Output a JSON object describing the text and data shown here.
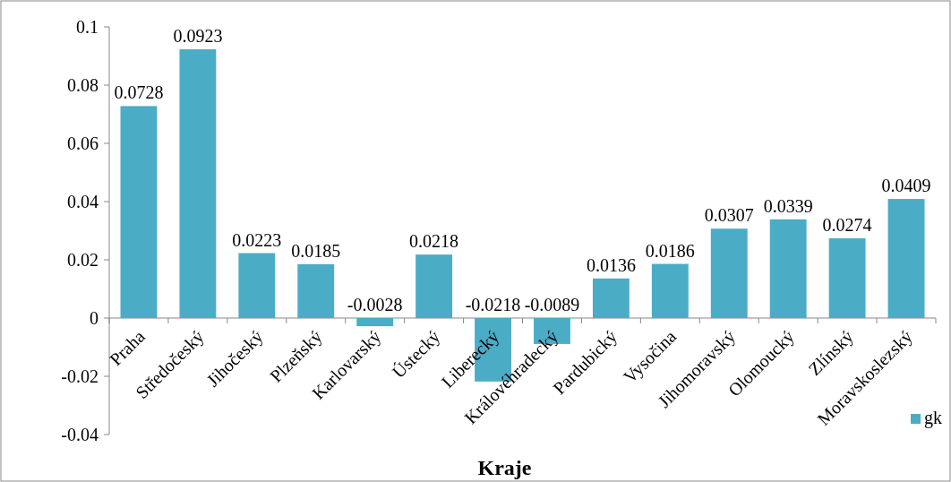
{
  "chart_data": {
    "type": "bar",
    "xlabel": "Kraje",
    "categories": [
      "Praha",
      "Středočeský",
      "Jihočeský",
      "Plzeňský",
      "Karlovarský",
      "Ústecký",
      "Liberecký",
      "Královéhradecký",
      "Pardubický",
      "Vysočina",
      "Jihomoravský",
      "Olomoucký",
      "Zlínský",
      "Moravskoslezský"
    ],
    "series": [
      {
        "name": "gk",
        "color": "#4bacc6",
        "values": [
          0.0728,
          0.0923,
          0.0223,
          0.0185,
          -0.0028,
          0.0218,
          -0.0218,
          -0.0089,
          0.0136,
          0.0186,
          0.0307,
          0.0339,
          0.0274,
          0.0409
        ]
      }
    ],
    "ylim": [
      -0.04,
      0.1
    ],
    "yticks": [
      -0.04,
      -0.02,
      0,
      0.02,
      0.04,
      0.06,
      0.08,
      0.1
    ],
    "data_labels": true,
    "legend": "bottom right",
    "grid": false
  }
}
